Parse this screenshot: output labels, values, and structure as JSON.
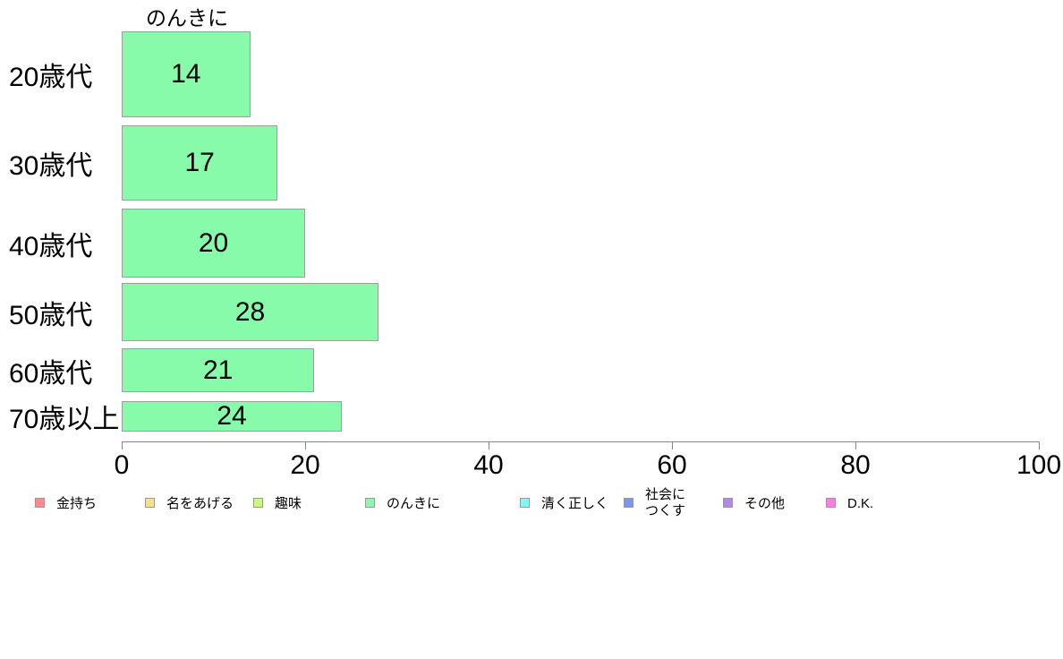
{
  "chart_data": {
    "type": "bar",
    "orientation": "horizontal",
    "title": "のんきに",
    "categories": [
      "20歳代",
      "30歳代",
      "40歳代",
      "50歳代",
      "60歳代",
      "70歳以上"
    ],
    "values": [
      14,
      17,
      20,
      28,
      21,
      24
    ],
    "bar_thickness_px": [
      96,
      84,
      77,
      65,
      49,
      34
    ],
    "bar_color": "#87FBA9",
    "bar_border_color": "#9e9e9e",
    "xlim": [
      0,
      100
    ],
    "x_ticks": [
      0,
      20,
      40,
      60,
      80,
      100
    ],
    "grid": false,
    "legend_position": "bottom",
    "legend": [
      {
        "label": "金持ち",
        "color": "#F98B8B"
      },
      {
        "label": "名をあげる",
        "color": "#F8E083"
      },
      {
        "label": "趣味",
        "color": "#C9F97E"
      },
      {
        "label": "のんきに",
        "color": "#87FBA9"
      },
      {
        "label": "清く正しく",
        "color": "#85F6F6"
      },
      {
        "label": "社会に\nつくす",
        "color": "#7C96EA"
      },
      {
        "label": "その他",
        "color": "#B288EF"
      },
      {
        "label": "D.K.",
        "color": "#FA7EE3"
      }
    ]
  }
}
